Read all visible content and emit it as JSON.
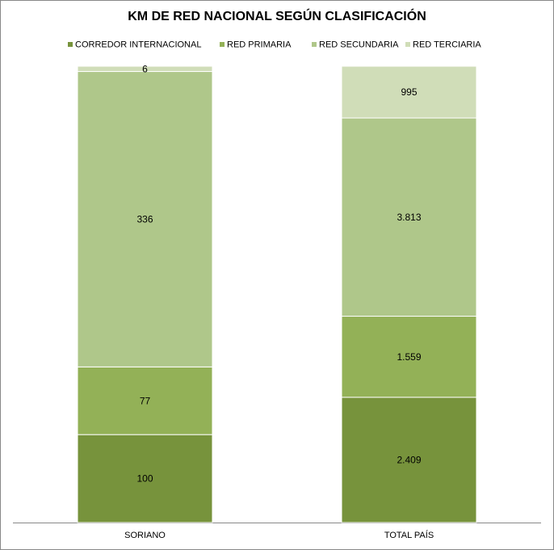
{
  "chart_data": {
    "type": "bar",
    "stacking": "percent",
    "title": "KM DE RED NACIONAL SEGÚN CLASIFICACIÓN",
    "categories": [
      "SORIANO",
      "TOTAL PAÍS"
    ],
    "series": [
      {
        "name": "CORREDOR INTERNACIONAL",
        "color": "#77933c",
        "values": [
          100,
          2409
        ],
        "value_labels": [
          "100",
          "2.409"
        ]
      },
      {
        "name": "RED PRIMARIA",
        "color": "#93b157",
        "values": [
          77,
          1559
        ],
        "value_labels": [
          "77",
          "1.559"
        ]
      },
      {
        "name": "RED SECUNDARIA",
        "color": "#afc78a",
        "values": [
          336,
          3813
        ],
        "value_labels": [
          "336",
          "3.813"
        ]
      },
      {
        "name": "RED TERCIARIA",
        "color": "#d0ddb8",
        "values": [
          6,
          995
        ],
        "value_labels": [
          "6",
          "995"
        ]
      }
    ],
    "legend": "top"
  }
}
